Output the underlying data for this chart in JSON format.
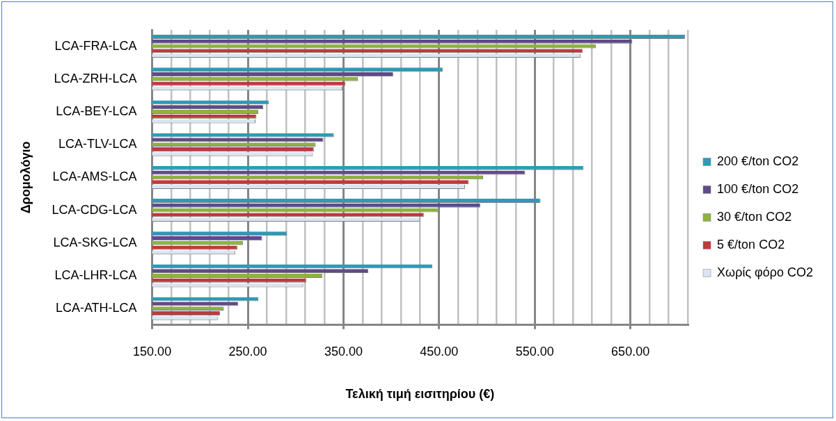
{
  "chart_data": {
    "type": "bar",
    "orientation": "horizontal",
    "xlabel": "Τελική τιμή εισιτηρίου (€)",
    "ylabel": "Δρομολόγιο",
    "categories": [
      "LCA-FRA-LCA",
      "LCA-ZRH-LCA",
      "LCA-BEY-LCA",
      "LCA-TLV-LCA",
      "LCA-AMS-LCA",
      "LCA-CDG-LCA",
      "LCA-SKG-LCA",
      "LCA-LHR-LCA",
      "LCA-ATH-LCA"
    ],
    "series": [
      {
        "name": "200 €/ton CO2",
        "color": "#2e9ab8",
        "values": [
          707,
          454,
          272,
          340,
          601,
          556,
          291,
          443,
          261
        ]
      },
      {
        "name": "100 €/ton CO2",
        "color": "#604a87",
        "values": [
          652,
          402,
          266,
          329,
          540,
          493,
          265,
          376,
          240
        ]
      },
      {
        "name": "30 €/ton CO2",
        "color": "#8db340",
        "values": [
          614,
          365,
          261,
          321,
          496,
          449,
          245,
          328,
          225
        ]
      },
      {
        "name": "5 €/ton CO2",
        "color": "#c0393b",
        "values": [
          600,
          352,
          259,
          319,
          481,
          434,
          239,
          311,
          221
        ]
      },
      {
        "name": "Χωρίς φόρο CO2",
        "color": "#dbe5f1",
        "values": [
          598,
          349,
          258,
          318,
          477,
          430,
          237,
          308,
          219
        ]
      }
    ],
    "xlim": [
      150,
      710
    ],
    "xticks": [
      {
        "value": 150,
        "label": "150.00"
      },
      {
        "value": 170,
        "label": null
      },
      {
        "value": 190,
        "label": null
      },
      {
        "value": 210,
        "label": null
      },
      {
        "value": 230,
        "label": null
      },
      {
        "value": 250,
        "label": "250.00"
      },
      {
        "value": 270,
        "label": null
      },
      {
        "value": 290,
        "label": null
      },
      {
        "value": 310,
        "label": null
      },
      {
        "value": 330,
        "label": null
      },
      {
        "value": 350,
        "label": "350.00"
      },
      {
        "value": 370,
        "label": null
      },
      {
        "value": 390,
        "label": null
      },
      {
        "value": 410,
        "label": null
      },
      {
        "value": 430,
        "label": null
      },
      {
        "value": 450,
        "label": "450.00"
      },
      {
        "value": 470,
        "label": null
      },
      {
        "value": 490,
        "label": null
      },
      {
        "value": 510,
        "label": null
      },
      {
        "value": 530,
        "label": null
      },
      {
        "value": 550,
        "label": "550.00"
      },
      {
        "value": 570,
        "label": null
      },
      {
        "value": 590,
        "label": null
      },
      {
        "value": 610,
        "label": null
      },
      {
        "value": 630,
        "label": null
      },
      {
        "value": 650,
        "label": "650.00"
      },
      {
        "value": 670,
        "label": null
      },
      {
        "value": 690,
        "label": null
      },
      {
        "value": 710,
        "label": null
      }
    ],
    "grid": "x",
    "legend": "right"
  }
}
